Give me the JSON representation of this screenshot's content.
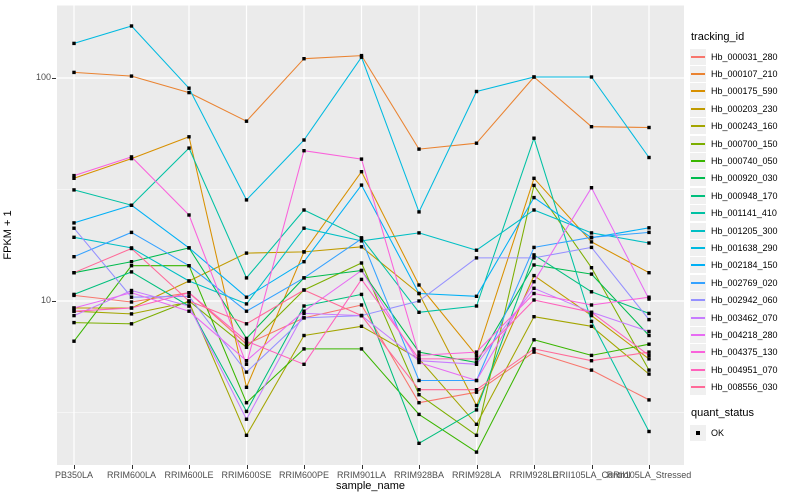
{
  "window": {
    "background": "#FFFFFF"
  },
  "panel": {
    "background": "#EBEBEB",
    "grid_color": "#FFFFFF",
    "tick_color": "#333333",
    "tick_label_color": "#4D4D4D"
  },
  "legend": {
    "tracking_title": "tracking_id",
    "quant_title": "quant_status",
    "ok_label": "OK",
    "key_bg": "#F0F0F0"
  },
  "chart_data": {
    "type": "line",
    "title": "",
    "xlabel": "sample_name",
    "ylabel": "FPKM + 1",
    "y_scale": "log10",
    "ylim": [
      1.8,
      210
    ],
    "grid": true,
    "legend_position": "right",
    "point_shape": "filled-black-square",
    "y_ticks": [
      {
        "label": "100",
        "value": 100
      },
      {
        "label": "10",
        "value": 10
      }
    ],
    "y_minor": [
      31.62,
      3.162
    ],
    "categories": [
      "PB350LA",
      "RRIM600LA",
      "RRIM600LE",
      "RRIM600SE",
      "RRIM600PE",
      "RRIM901LA",
      "RRIM928BA",
      "RRIM928LA",
      "RRIM928LE",
      "RRII105LA_Control",
      "RRII105LA_Stressed"
    ],
    "series": [
      {
        "name": "Hb_000031_280",
        "color": "#F8766D",
        "values": [
          10.6,
          9.9,
          10.9,
          6.4,
          8.4,
          9.6,
          3.5,
          3.9,
          5.9,
          4.9,
          3.6
        ]
      },
      {
        "name": "Hb_000107_210",
        "color": "#EA8331",
        "values": [
          106,
          102,
          86,
          64,
          122,
          126,
          48,
          51,
          101,
          60.5,
          60
        ]
      },
      {
        "name": "Hb_000175_590",
        "color": "#D89000",
        "values": [
          35.5,
          43.5,
          54.5,
          4.1,
          16.6,
          38,
          11.8,
          5.7,
          35.5,
          18.4,
          13.4
        ]
      },
      {
        "name": "Hb_000203_230",
        "color": "#C09B00",
        "values": [
          9.3,
          9.3,
          12.3,
          16.4,
          16.6,
          17.5,
          10.8,
          3.4,
          13.0,
          8.6,
          5.5
        ]
      },
      {
        "name": "Hb_000243_160",
        "color": "#A3A500",
        "values": [
          9.0,
          8.75,
          9.9,
          2.5,
          7.0,
          7.7,
          5.5,
          2.8,
          8.5,
          7.7,
          4.7
        ]
      },
      {
        "name": "Hb_000700_150",
        "color": "#7CAE00",
        "values": [
          8.0,
          7.9,
          10.0,
          6.2,
          11.2,
          14.8,
          3.8,
          2.5,
          33,
          14.1,
          4.9
        ]
      },
      {
        "name": "Hb_000740_050",
        "color": "#39B600",
        "values": [
          6.6,
          14.4,
          14.4,
          3.5,
          6.1,
          6.1,
          3.1,
          2.1,
          6.7,
          5.7,
          6.4
        ]
      },
      {
        "name": "Hb_000920_030",
        "color": "#00BB4E",
        "values": [
          13.4,
          15.0,
          17.3,
          6.8,
          12.7,
          13.7,
          5.9,
          5.3,
          14.5,
          13.2,
          7.0
        ]
      },
      {
        "name": "Hb_000948_170",
        "color": "#00BF7D",
        "values": [
          10.7,
          13.5,
          9.5,
          3.2,
          9.5,
          10.7,
          2.3,
          3.25,
          16.1,
          11.0,
          8.8
        ]
      },
      {
        "name": "Hb_001141_410",
        "color": "#00C1A3",
        "values": [
          31.5,
          26.9,
          48.5,
          12.7,
          25.6,
          19.2,
          8.9,
          9.5,
          53.7,
          8.1,
          2.6
        ]
      },
      {
        "name": "Hb_001205_300",
        "color": "#00BFC4",
        "values": [
          19.3,
          17.3,
          12.3,
          9.7,
          21.2,
          18.6,
          20.2,
          16.9,
          25.6,
          20.2,
          18.2
        ]
      },
      {
        "name": "Hb_001638_290",
        "color": "#00BAE0",
        "values": [
          143,
          171,
          90,
          28.4,
          52.7,
          124,
          25.1,
          87,
          101,
          101,
          44
        ]
      },
      {
        "name": "Hb_002184_150",
        "color": "#00B0F6",
        "values": [
          22.4,
          26.9,
          17.3,
          10.4,
          15.0,
          33.1,
          10.8,
          10.5,
          29.1,
          19.2,
          21.3
        ]
      },
      {
        "name": "Hb_002769_020",
        "color": "#35A2FF",
        "values": [
          15.8,
          20.3,
          14.4,
          9.0,
          12.7,
          19.0,
          4.4,
          4.4,
          17.4,
          19.3,
          20.3
        ]
      },
      {
        "name": "Hb_002942_060",
        "color": "#9590FF",
        "values": [
          21.2,
          10.4,
          10.5,
          4.8,
          8.4,
          8.6,
          10.0,
          15.6,
          15.6,
          17.4,
          8.25
        ]
      },
      {
        "name": "Hb_003462_070",
        "color": "#C77CFF",
        "values": [
          8.6,
          11.15,
          9.5,
          2.95,
          8.8,
          8.6,
          5.4,
          5.2,
          11.4,
          8.9,
          7.3
        ]
      },
      {
        "name": "Hb_004218_280",
        "color": "#E76BF3",
        "values": [
          9.3,
          10.9,
          9.0,
          5.4,
          9.0,
          13.7,
          5.3,
          4.4,
          12.2,
          32.2,
          10.2
        ]
      },
      {
        "name": "Hb_004375_130",
        "color": "#FA62DB",
        "values": [
          36.5,
          44.3,
          24.3,
          5.2,
          47.2,
          43.3,
          5.7,
          5.9,
          10.8,
          9.6,
          10.4
        ]
      },
      {
        "name": "Hb_004951_070",
        "color": "#FF62BC",
        "values": [
          9.0,
          9.3,
          10.9,
          6.6,
          5.2,
          12.5,
          5.5,
          5.5,
          10.1,
          8.9,
          5.7
        ]
      },
      {
        "name": "Hb_008556_030",
        "color": "#FF6A98",
        "values": [
          13.4,
          17.2,
          10.0,
          7.9,
          11.2,
          8.6,
          4.0,
          4.0,
          6.1,
          5.4,
          5.9
        ]
      }
    ]
  }
}
